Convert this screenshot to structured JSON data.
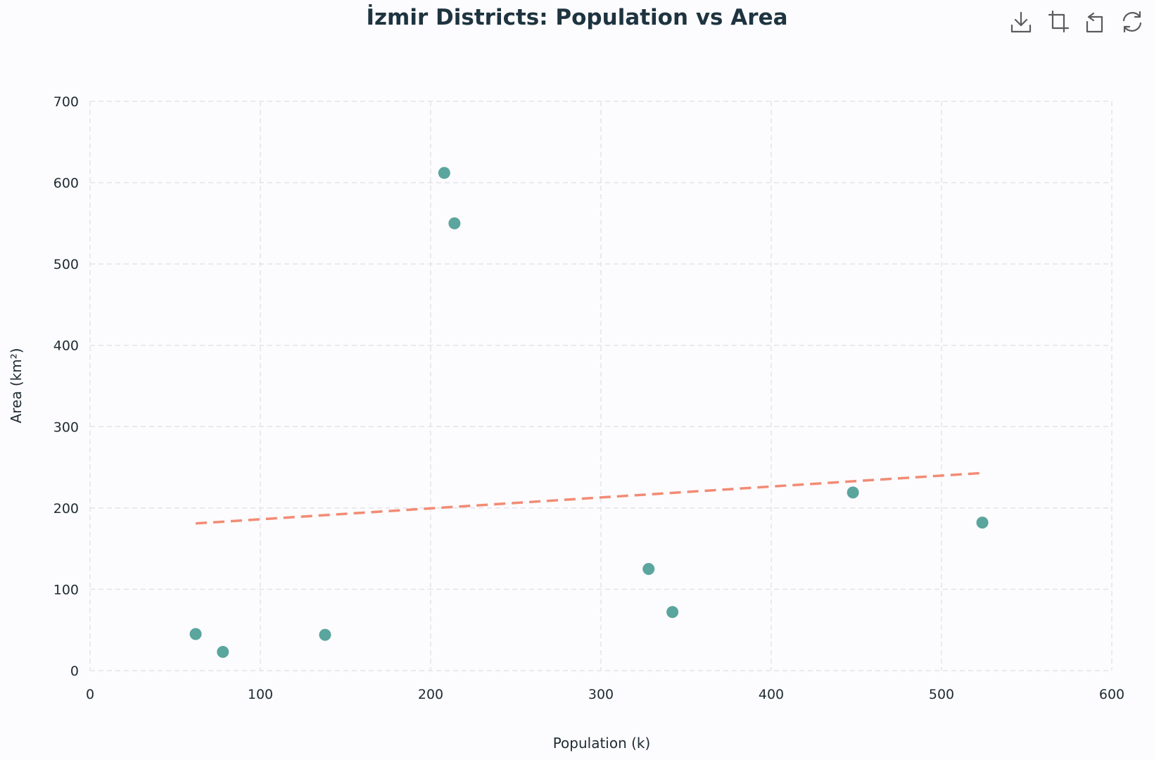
{
  "chart_data": {
    "type": "scatter",
    "title": "İzmir Districts: Population vs Area",
    "xlabel": "Population (k)",
    "ylabel": "Area (km²)",
    "xlim": [
      0,
      600
    ],
    "ylim": [
      0,
      700
    ],
    "xticks": [
      0,
      100,
      200,
      300,
      400,
      500,
      600
    ],
    "yticks": [
      0,
      100,
      200,
      300,
      400,
      500,
      600,
      700
    ],
    "grid": true,
    "points": [
      {
        "x": 62,
        "y": 45
      },
      {
        "x": 78,
        "y": 23
      },
      {
        "x": 138,
        "y": 44
      },
      {
        "x": 208,
        "y": 612
      },
      {
        "x": 214,
        "y": 550
      },
      {
        "x": 328,
        "y": 125
      },
      {
        "x": 342,
        "y": 72
      },
      {
        "x": 448,
        "y": 219
      },
      {
        "x": 524,
        "y": 182
      }
    ],
    "trendline": {
      "x": [
        62,
        524
      ],
      "y": [
        181,
        243
      ],
      "style": "dashed"
    },
    "colors": {
      "points": "#5aa59d",
      "trendline": "#f28b74",
      "grid": "#e4e4e8",
      "text": "#1e2b33"
    }
  },
  "toolbar": {
    "icons": [
      "download-icon",
      "crop-icon",
      "undo-icon",
      "refresh-icon"
    ]
  }
}
